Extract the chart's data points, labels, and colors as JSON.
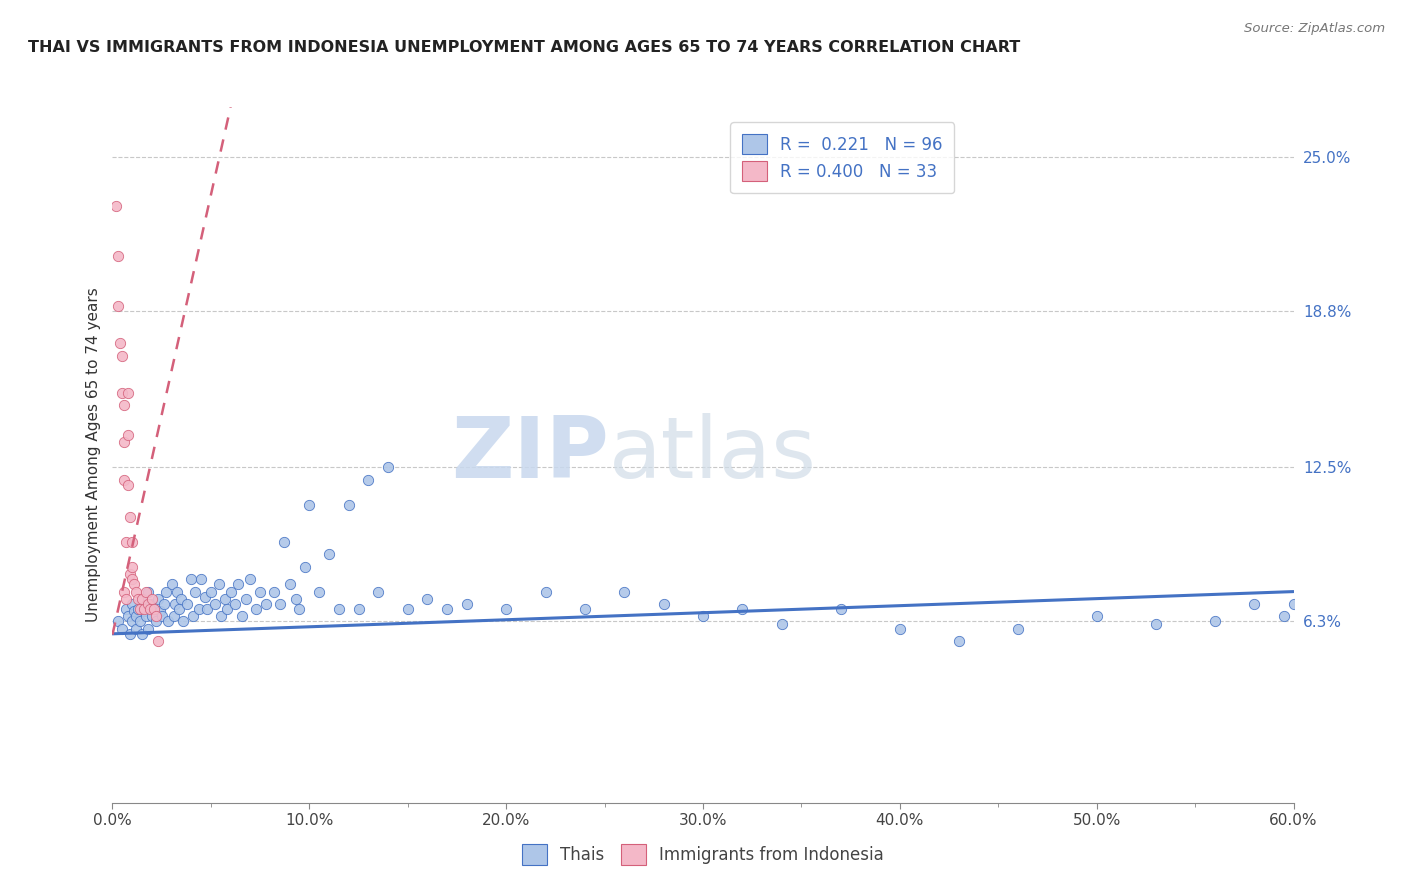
{
  "title": "THAI VS IMMIGRANTS FROM INDONESIA UNEMPLOYMENT AMONG AGES 65 TO 74 YEARS CORRELATION CHART",
  "source": "Source: ZipAtlas.com",
  "ylabel": "Unemployment Among Ages 65 to 74 years",
  "xlim": [
    0.0,
    0.6
  ],
  "ylim": [
    -0.01,
    0.27
  ],
  "xtick_labels": [
    "0.0%",
    "",
    "10.0%",
    "",
    "20.0%",
    "",
    "30.0%",
    "",
    "40.0%",
    "",
    "50.0%",
    "",
    "60.0%"
  ],
  "xtick_vals": [
    0.0,
    0.05,
    0.1,
    0.15,
    0.2,
    0.25,
    0.3,
    0.35,
    0.4,
    0.45,
    0.5,
    0.55,
    0.6
  ],
  "ytick_vals_right": [
    0.25,
    0.188,
    0.125,
    0.063
  ],
  "ytick_labels_right": [
    "25.0%",
    "18.8%",
    "12.5%",
    "6.3%"
  ],
  "thai_color": "#aec6e8",
  "thai_line_color": "#4472c4",
  "indonesia_color": "#f4b8c8",
  "indonesia_line_color": "#d4607a",
  "thai_R": "0.221",
  "thai_N": "96",
  "indonesia_R": "0.400",
  "indonesia_N": "33",
  "legend_label_thai": "Thais",
  "legend_label_indonesia": "Immigrants from Indonesia",
  "watermark_zip": "ZIP",
  "watermark_atlas": "atlas",
  "thai_scatter_x": [
    0.003,
    0.005,
    0.007,
    0.008,
    0.009,
    0.01,
    0.01,
    0.011,
    0.012,
    0.012,
    0.013,
    0.014,
    0.015,
    0.015,
    0.016,
    0.017,
    0.018,
    0.018,
    0.019,
    0.02,
    0.021,
    0.022,
    0.023,
    0.024,
    0.025,
    0.026,
    0.027,
    0.028,
    0.03,
    0.031,
    0.032,
    0.033,
    0.034,
    0.035,
    0.036,
    0.038,
    0.04,
    0.041,
    0.042,
    0.044,
    0.045,
    0.047,
    0.048,
    0.05,
    0.052,
    0.054,
    0.055,
    0.057,
    0.058,
    0.06,
    0.062,
    0.064,
    0.066,
    0.068,
    0.07,
    0.073,
    0.075,
    0.078,
    0.082,
    0.085,
    0.087,
    0.09,
    0.093,
    0.095,
    0.098,
    0.1,
    0.105,
    0.11,
    0.115,
    0.12,
    0.125,
    0.13,
    0.135,
    0.14,
    0.15,
    0.16,
    0.17,
    0.18,
    0.2,
    0.22,
    0.24,
    0.26,
    0.28,
    0.3,
    0.32,
    0.34,
    0.37,
    0.4,
    0.43,
    0.46,
    0.5,
    0.53,
    0.56,
    0.58,
    0.595,
    0.6
  ],
  "thai_scatter_y": [
    0.063,
    0.06,
    0.068,
    0.065,
    0.058,
    0.07,
    0.063,
    0.067,
    0.065,
    0.06,
    0.068,
    0.063,
    0.072,
    0.058,
    0.067,
    0.065,
    0.075,
    0.06,
    0.07,
    0.065,
    0.068,
    0.063,
    0.072,
    0.067,
    0.065,
    0.07,
    0.075,
    0.063,
    0.078,
    0.065,
    0.07,
    0.075,
    0.068,
    0.072,
    0.063,
    0.07,
    0.08,
    0.065,
    0.075,
    0.068,
    0.08,
    0.073,
    0.068,
    0.075,
    0.07,
    0.078,
    0.065,
    0.072,
    0.068,
    0.075,
    0.07,
    0.078,
    0.065,
    0.072,
    0.08,
    0.068,
    0.075,
    0.07,
    0.075,
    0.07,
    0.095,
    0.078,
    0.072,
    0.068,
    0.085,
    0.11,
    0.075,
    0.09,
    0.068,
    0.11,
    0.068,
    0.12,
    0.075,
    0.125,
    0.068,
    0.072,
    0.068,
    0.07,
    0.068,
    0.075,
    0.068,
    0.075,
    0.07,
    0.065,
    0.068,
    0.062,
    0.068,
    0.06,
    0.055,
    0.06,
    0.065,
    0.062,
    0.063,
    0.07,
    0.065,
    0.07
  ],
  "indonesia_scatter_x": [
    0.002,
    0.003,
    0.003,
    0.004,
    0.005,
    0.005,
    0.006,
    0.006,
    0.006,
    0.006,
    0.007,
    0.007,
    0.008,
    0.008,
    0.008,
    0.009,
    0.009,
    0.01,
    0.01,
    0.01,
    0.011,
    0.012,
    0.013,
    0.014,
    0.015,
    0.016,
    0.017,
    0.018,
    0.019,
    0.02,
    0.021,
    0.022,
    0.023
  ],
  "indonesia_scatter_y": [
    0.23,
    0.21,
    0.19,
    0.175,
    0.17,
    0.155,
    0.15,
    0.135,
    0.12,
    0.075,
    0.095,
    0.072,
    0.155,
    0.138,
    0.118,
    0.105,
    0.082,
    0.095,
    0.08,
    0.085,
    0.078,
    0.075,
    0.072,
    0.068,
    0.072,
    0.068,
    0.075,
    0.07,
    0.068,
    0.072,
    0.068,
    0.065,
    0.055
  ],
  "thai_trend_x": [
    0.0,
    0.6
  ],
  "thai_trend_y": [
    0.058,
    0.075
  ],
  "indonesia_trend_x": [
    -0.005,
    0.06
  ],
  "indonesia_trend_y": [
    0.04,
    0.27
  ],
  "background_color": "#ffffff",
  "grid_color": "#c8c8c8"
}
